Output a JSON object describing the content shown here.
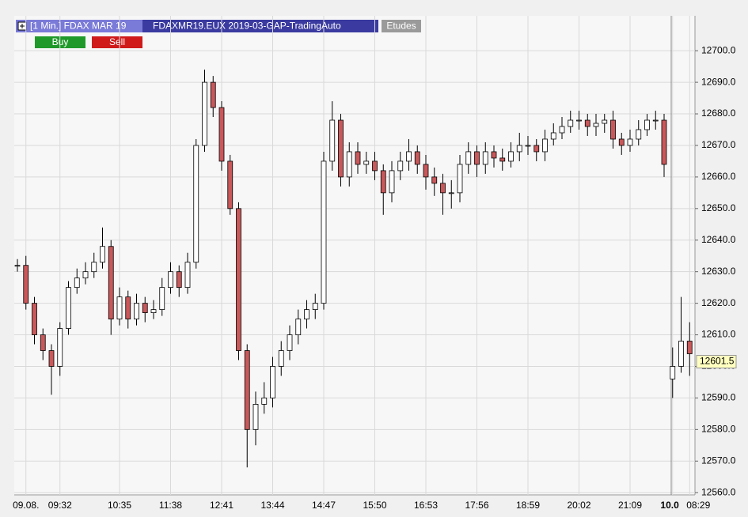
{
  "toolbar": {
    "title": "[1 Min.] FDAX MAR 19",
    "instrument": "FDAXMR19.EUX 2019-03-GAP-TradingAuto",
    "studies": "Etudes",
    "buy": "Buy",
    "sell": "Sell"
  },
  "chart_data": {
    "type": "candlestick",
    "categories": [
      null,
      "09.08.",
      null,
      null,
      null,
      "09:32",
      null,
      null,
      null,
      null,
      null,
      null,
      "10:35",
      null,
      null,
      null,
      null,
      null,
      "11:38",
      null,
      null,
      null,
      null,
      null,
      "12:41",
      null,
      null,
      null,
      null,
      null,
      "13:44",
      null,
      null,
      null,
      null,
      null,
      "14:47",
      null,
      null,
      null,
      null,
      null,
      "15:50",
      null,
      null,
      null,
      null,
      null,
      "16:53",
      null,
      null,
      null,
      null,
      null,
      "17:56",
      null,
      null,
      null,
      null,
      null,
      "18:59",
      null,
      null,
      null,
      null,
      null,
      "20:02",
      null,
      null,
      null,
      null,
      null,
      "21:09",
      null,
      null,
      null,
      null,
      "10.0",
      null,
      "08:29"
    ],
    "open": [
      12632,
      12632,
      12620,
      12610,
      12605,
      12600,
      12612,
      12625,
      12628,
      12630,
      12633,
      12638,
      12615,
      12622,
      12615,
      12620,
      12617,
      12618,
      12625,
      12630,
      12625,
      12633,
      12670,
      12690,
      12682,
      12665,
      12650,
      12605,
      12580,
      12588,
      12590,
      12600,
      12605,
      12610,
      12615,
      12618,
      12620,
      12665,
      12678,
      12660,
      12668,
      12664,
      12665,
      12662,
      12655,
      12662,
      12665,
      12668,
      12664,
      12660,
      12658,
      12655,
      12655,
      12664,
      12668,
      12664,
      12668,
      12666,
      12665,
      12668,
      12670,
      12670,
      12668,
      12672,
      12674,
      12676,
      12678,
      12678,
      12676,
      12677,
      12678,
      12672,
      12670,
      12672,
      12675,
      12678,
      12678,
      12596,
      12600,
      12608
    ],
    "high": [
      12634,
      12635,
      12622,
      12612,
      12607,
      12614,
      12627,
      12631,
      12633,
      12636,
      12644,
      12640,
      12625,
      12624,
      12623,
      12622,
      12621,
      12628,
      12633,
      12632,
      12636,
      12672,
      12694,
      12692,
      12684,
      12667,
      12652,
      12607,
      12592,
      12595,
      12603,
      12608,
      12613,
      12618,
      12621,
      12623,
      12668,
      12684,
      12680,
      12671,
      12671,
      12668,
      12668,
      12664,
      12665,
      12668,
      12672,
      12670,
      12667,
      12663,
      12661,
      12659,
      12667,
      12671,
      12670,
      12671,
      12670,
      12669,
      12671,
      12674,
      12673,
      12672,
      12675,
      12677,
      12679,
      12681,
      12681,
      12680,
      12680,
      12680,
      12681,
      12674,
      12675,
      12678,
      12680,
      12681,
      12680,
      12606,
      12622,
      12614
    ],
    "low": [
      12630,
      12618,
      12607,
      12602,
      12591,
      12597,
      12610,
      12623,
      12626,
      12628,
      12631,
      12610,
      12613,
      12612,
      12613,
      12614,
      12615,
      12616,
      12623,
      12622,
      12623,
      12631,
      12668,
      12679,
      12662,
      12648,
      12602,
      12568,
      12575,
      12585,
      12587,
      12597,
      12602,
      12607,
      12612,
      12615,
      12618,
      12662,
      12657,
      12657,
      12661,
      12661,
      12659,
      12648,
      12652,
      12659,
      12662,
      12661,
      12656,
      12654,
      12648,
      12650,
      12652,
      12661,
      12660,
      12661,
      12663,
      12662,
      12663,
      12665,
      12667,
      12665,
      12665,
      12670,
      12672,
      12674,
      12675,
      12673,
      12673,
      12674,
      12669,
      12667,
      12668,
      12670,
      12673,
      12675,
      12660,
      12590,
      12598,
      12597
    ],
    "close": [
      12632,
      12620,
      12610,
      12605,
      12600,
      12612,
      12625,
      12628,
      12630,
      12633,
      12638,
      12615,
      12622,
      12615,
      12620,
      12617,
      12618,
      12625,
      12630,
      12625,
      12633,
      12670,
      12690,
      12682,
      12665,
      12650,
      12605,
      12580,
      12588,
      12590,
      12600,
      12605,
      12610,
      12615,
      12618,
      12620,
      12665,
      12678,
      12660,
      12668,
      12664,
      12665,
      12662,
      12655,
      12662,
      12665,
      12668,
      12664,
      12660,
      12658,
      12655,
      12655,
      12664,
      12668,
      12664,
      12668,
      12666,
      12665,
      12668,
      12670,
      12670,
      12668,
      12672,
      12674,
      12676,
      12678,
      12678,
      12676,
      12677,
      12678,
      12672,
      12670,
      12672,
      12675,
      12678,
      12678,
      12664,
      12600,
      12608,
      12604
    ],
    "up_color": "#ffffff",
    "down_color": "#c8585a",
    "last_price": 12601.5,
    "ylim": [
      12559.3,
      12704.8
    ],
    "yticks": [
      {
        "value": 12560,
        "label": "12560.0"
      },
      {
        "value": 12570,
        "label": "12570.0"
      },
      {
        "value": 12580,
        "label": "12580.0"
      },
      {
        "value": 12590,
        "label": "12590.0"
      },
      {
        "value": 12600,
        "label": "12600.0"
      },
      {
        "value": 12610,
        "label": "12610.0"
      },
      {
        "value": 12620,
        "label": "12620.0"
      },
      {
        "value": 12630,
        "label": "12630.0"
      },
      {
        "value": 12640,
        "label": "12640.0"
      },
      {
        "value": 12650,
        "label": "12650.0"
      },
      {
        "value": 12660,
        "label": "12660.0"
      },
      {
        "value": 12670,
        "label": "12670.0"
      },
      {
        "value": 12680,
        "label": "12680.0"
      },
      {
        "value": 12690,
        "label": "12690.0"
      },
      {
        "value": 12700,
        "label": "12700.0"
      }
    ],
    "grid": true
  }
}
